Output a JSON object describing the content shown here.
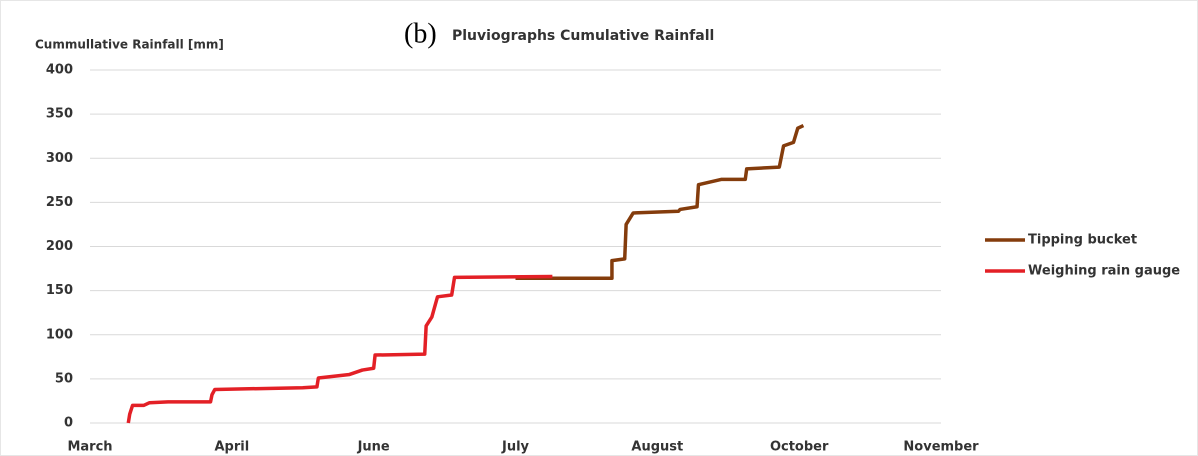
{
  "chart_data": {
    "type": "line",
    "panel_label": "(b)",
    "title": "Pluviographs Cumulative Rainfall",
    "y_label": "Cummullative Rainfall [mm]",
    "xlim": [
      0,
      6
    ],
    "xticks": [
      {
        "value": 0,
        "label": "March"
      },
      {
        "value": 1,
        "label": "April"
      },
      {
        "value": 2,
        "label": "June"
      },
      {
        "value": 3,
        "label": "July"
      },
      {
        "value": 4,
        "label": "August"
      },
      {
        "value": 5,
        "label": "October"
      },
      {
        "value": 6,
        "label": "November"
      }
    ],
    "ylim": [
      0,
      400
    ],
    "yticks": [
      0,
      50,
      100,
      150,
      200,
      250,
      300,
      350,
      400
    ],
    "grid": true,
    "legend": "right",
    "series": [
      {
        "name": "Tipping bucket",
        "color": "#843c0c",
        "x": [
          3.0,
          3.68,
          3.68,
          3.77,
          3.78,
          3.83,
          4.15,
          4.16,
          4.28,
          4.29,
          4.45,
          4.62,
          4.63,
          4.86,
          4.89,
          4.96,
          4.99,
          5.03
        ],
        "values": [
          164,
          164,
          184,
          186,
          225,
          238,
          240,
          242,
          245,
          270,
          276,
          276,
          288,
          290,
          314,
          318,
          334,
          337
        ]
      },
      {
        "name": "Weighing rain gauge",
        "color": "#e32026",
        "x": [
          0.27,
          0.28,
          0.3,
          0.38,
          0.42,
          0.55,
          0.85,
          0.86,
          0.88,
          1.2,
          1.5,
          1.6,
          1.61,
          1.83,
          1.92,
          2.0,
          2.01,
          2.36,
          2.37,
          2.41,
          2.45,
          2.55,
          2.57,
          3.26
        ],
        "values": [
          0,
          10,
          20,
          20,
          23,
          24,
          24,
          32,
          38,
          39,
          40,
          41,
          51,
          55,
          60,
          62,
          77,
          78,
          110,
          120,
          143,
          145,
          165,
          166
        ]
      }
    ]
  }
}
